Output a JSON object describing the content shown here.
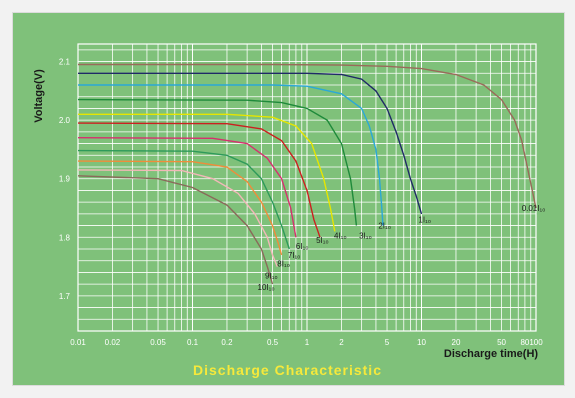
{
  "chart_data": {
    "type": "line",
    "title": "Discharge Characteristic",
    "xlabel": "Discharge time(H)",
    "ylabel": "Voltage(V)",
    "x_scale": "log",
    "xlim": [
      0.01,
      100
    ],
    "ylim": [
      1.64,
      2.13
    ],
    "x_ticks": [
      0.01,
      0.02,
      0.05,
      0.1,
      0.2,
      0.5,
      1,
      2,
      5,
      10,
      20,
      50,
      80,
      100
    ],
    "x_tick_labels": [
      "0.01",
      "0.02",
      "0.05",
      "0.1",
      "0.2",
      "0.5",
      "1",
      "2",
      "5",
      "10",
      "20",
      "50",
      "80",
      "100"
    ],
    "y_ticks": [
      1.7,
      1.8,
      1.9,
      2.0,
      2.1
    ],
    "y_tick_labels": [
      "1.7",
      "1.8",
      "1.9",
      "2.0",
      "2.1"
    ],
    "grid": true,
    "series": [
      {
        "name": "0.01I₁₀",
        "color": "#9a6a5a",
        "label_x": 75,
        "label_y": 1.845,
        "points": [
          [
            0.01,
            2.095
          ],
          [
            0.5,
            2.095
          ],
          [
            2,
            2.094
          ],
          [
            5,
            2.092
          ],
          [
            10,
            2.088
          ],
          [
            20,
            2.078
          ],
          [
            35,
            2.06
          ],
          [
            50,
            2.035
          ],
          [
            65,
            2.0
          ],
          [
            75,
            1.965
          ],
          [
            85,
            1.915
          ],
          [
            100,
            1.85
          ]
        ]
      },
      {
        "name": "1I₁₀",
        "color": "#1f2a66",
        "label_x": 9.4,
        "label_y": 1.825,
        "points": [
          [
            0.01,
            2.08
          ],
          [
            1,
            2.08
          ],
          [
            2,
            2.078
          ],
          [
            3,
            2.07
          ],
          [
            4,
            2.05
          ],
          [
            5,
            2.02
          ],
          [
            6,
            1.98
          ],
          [
            7,
            1.94
          ],
          [
            8,
            1.9
          ],
          [
            9,
            1.87
          ],
          [
            10,
            1.84
          ]
        ]
      },
      {
        "name": "2I₁₀",
        "color": "#2aa8d8",
        "label_x": 4.2,
        "label_y": 1.815,
        "points": [
          [
            0.01,
            2.06
          ],
          [
            0.5,
            2.06
          ],
          [
            1,
            2.058
          ],
          [
            2,
            2.045
          ],
          [
            3,
            2.02
          ],
          [
            3.5,
            1.99
          ],
          [
            4,
            1.95
          ],
          [
            4.3,
            1.9
          ],
          [
            4.5,
            1.85
          ],
          [
            4.6,
            1.82
          ]
        ]
      },
      {
        "name": "3I₁₀",
        "color": "#1e8a3a",
        "label_x": 2.85,
        "label_y": 1.798,
        "points": [
          [
            0.01,
            2.035
          ],
          [
            0.3,
            2.034
          ],
          [
            0.6,
            2.03
          ],
          [
            1,
            2.02
          ],
          [
            1.5,
            2.0
          ],
          [
            2,
            1.96
          ],
          [
            2.4,
            1.9
          ],
          [
            2.6,
            1.85
          ],
          [
            2.7,
            1.82
          ]
        ]
      },
      {
        "name": "4I₁₀",
        "color": "#e6e600",
        "label_x": 1.72,
        "label_y": 1.798,
        "points": [
          [
            0.01,
            2.01
          ],
          [
            0.2,
            2.01
          ],
          [
            0.5,
            2.005
          ],
          [
            0.8,
            1.99
          ],
          [
            1.1,
            1.96
          ],
          [
            1.4,
            1.9
          ],
          [
            1.6,
            1.85
          ],
          [
            1.75,
            1.81
          ]
        ]
      },
      {
        "name": "5I₁₀",
        "color": "#cc1f1f",
        "label_x": 1.2,
        "label_y": 1.79,
        "points": [
          [
            0.01,
            1.995
          ],
          [
            0.2,
            1.994
          ],
          [
            0.4,
            1.985
          ],
          [
            0.6,
            1.965
          ],
          [
            0.8,
            1.93
          ],
          [
            1.0,
            1.88
          ],
          [
            1.15,
            1.83
          ],
          [
            1.3,
            1.8
          ]
        ]
      },
      {
        "name": "6I₁₀",
        "color": "#d6306e",
        "label_x": 0.8,
        "label_y": 1.78,
        "points": [
          [
            0.01,
            1.97
          ],
          [
            0.15,
            1.969
          ],
          [
            0.3,
            1.96
          ],
          [
            0.45,
            1.935
          ],
          [
            0.6,
            1.9
          ],
          [
            0.72,
            1.85
          ],
          [
            0.8,
            1.8
          ]
        ]
      },
      {
        "name": "7I₁₀",
        "color": "#2e9a5a",
        "label_x": 0.68,
        "label_y": 1.765,
        "points": [
          [
            0.01,
            1.948
          ],
          [
            0.1,
            1.947
          ],
          [
            0.2,
            1.94
          ],
          [
            0.3,
            1.925
          ],
          [
            0.4,
            1.9
          ],
          [
            0.5,
            1.86
          ],
          [
            0.6,
            1.82
          ],
          [
            0.7,
            1.78
          ]
        ]
      },
      {
        "name": "8I₁₀",
        "color": "#f08c3a",
        "label_x": 0.55,
        "label_y": 1.75,
        "points": [
          [
            0.01,
            1.93
          ],
          [
            0.1,
            1.929
          ],
          [
            0.2,
            1.92
          ],
          [
            0.3,
            1.895
          ],
          [
            0.4,
            1.86
          ],
          [
            0.5,
            1.82
          ],
          [
            0.56,
            1.79
          ],
          [
            0.6,
            1.77
          ]
        ]
      },
      {
        "name": "9I₁₀",
        "color": "#f2b8b8",
        "label_x": 0.43,
        "label_y": 1.73,
        "points": [
          [
            0.01,
            1.915
          ],
          [
            0.08,
            1.914
          ],
          [
            0.15,
            1.9
          ],
          [
            0.25,
            1.875
          ],
          [
            0.35,
            1.84
          ],
          [
            0.45,
            1.8
          ],
          [
            0.5,
            1.77
          ],
          [
            0.55,
            1.75
          ]
        ]
      },
      {
        "name": "10I₁₀",
        "color": "#8a6a5a",
        "label_x": 0.37,
        "label_y": 1.71,
        "points": [
          [
            0.01,
            1.905
          ],
          [
            0.05,
            1.9
          ],
          [
            0.1,
            1.885
          ],
          [
            0.2,
            1.855
          ],
          [
            0.3,
            1.82
          ],
          [
            0.4,
            1.78
          ],
          [
            0.45,
            1.75
          ],
          [
            0.5,
            1.72
          ]
        ]
      }
    ]
  }
}
